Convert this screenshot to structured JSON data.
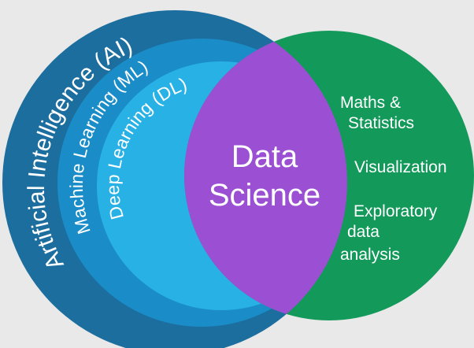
{
  "colors": {
    "background": "#e9e9e9",
    "ai": "#1c6e9f",
    "ml": "#1a8dc8",
    "dl": "#28b1e5",
    "right_circle": "#139a5b",
    "overlap": "#9b4fd2",
    "text": "#ffffff"
  },
  "ai_circle": {
    "label": "Artificial Intelligence (AI)"
  },
  "ml_circle": {
    "label": "Machine Learning (ML)"
  },
  "dl_circle": {
    "label": "Deep Learning (DL)"
  },
  "overlap": {
    "label_lines": [
      "Data",
      "Science"
    ]
  },
  "right_circle": {
    "items": [
      {
        "lines": [
          "Maths &",
          "Statistics"
        ]
      },
      {
        "lines": [
          "Visualization"
        ]
      },
      {
        "lines": [
          "Exploratory",
          "data",
          "analysis"
        ]
      }
    ]
  }
}
